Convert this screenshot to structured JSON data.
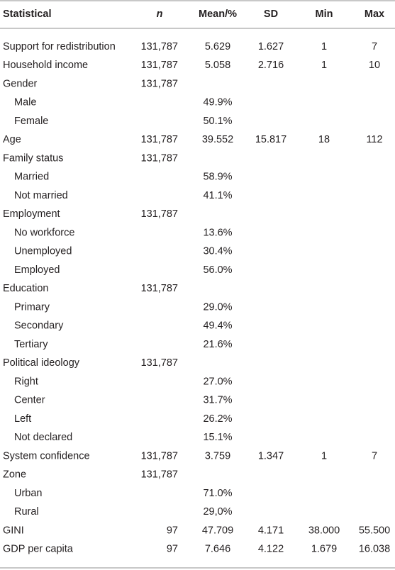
{
  "table": {
    "header": [
      "Statistical",
      "n",
      "Mean/%",
      "SD",
      "Min",
      "Max"
    ],
    "rows": [
      {
        "cells": [
          "Support for redistribution",
          "131,787",
          "5.629",
          "1.627",
          "1",
          "7"
        ]
      },
      {
        "cells": [
          "Household income",
          "131,787",
          "5.058",
          "2.716",
          "1",
          "10"
        ]
      },
      {
        "cells": [
          "Gender",
          "131,787",
          null,
          null,
          null,
          null
        ],
        "children": [
          {
            "cells": [
              "Male",
              null,
              "49.9%",
              null,
              null,
              null
            ]
          },
          {
            "cells": [
              "Female",
              null,
              "50.1%",
              null,
              null,
              null
            ]
          }
        ]
      },
      {
        "cells": [
          "Age",
          "131,787",
          "39.552",
          "15.817",
          "18",
          "112"
        ]
      },
      {
        "cells": [
          "Family status",
          "131,787",
          null,
          null,
          null,
          null
        ],
        "children": [
          {
            "cells": [
              "Married",
              null,
              "58.9%",
              null,
              null,
              null
            ]
          },
          {
            "cells": [
              "Not married",
              null,
              "41.1%",
              null,
              null,
              null
            ]
          }
        ]
      },
      {
        "cells": [
          "Employment",
          "131,787",
          null,
          null,
          null,
          null
        ],
        "children": [
          {
            "cells": [
              "No workforce",
              null,
              "13.6%",
              null,
              null,
              null
            ]
          },
          {
            "cells": [
              "Unemployed",
              null,
              "30.4%",
              null,
              null,
              null
            ]
          },
          {
            "cells": [
              "Employed",
              null,
              "56.0%",
              null,
              null,
              null
            ]
          }
        ]
      },
      {
        "cells": [
          "Education",
          "131,787",
          null,
          null,
          null,
          null
        ],
        "children": [
          {
            "cells": [
              "Primary",
              null,
              "29.0%",
              null,
              null,
              null
            ]
          },
          {
            "cells": [
              "Secondary",
              null,
              "49.4%",
              null,
              null,
              null
            ]
          },
          {
            "cells": [
              "Tertiary",
              null,
              "21.6%",
              null,
              null,
              null
            ]
          }
        ]
      },
      {
        "cells": [
          "Political ideology",
          "131,787",
          null,
          null,
          null,
          null
        ],
        "children": [
          {
            "cells": [
              "Right",
              null,
              "27.0%",
              null,
              null,
              null
            ]
          },
          {
            "cells": [
              "Center",
              null,
              "31.7%",
              null,
              null,
              null
            ]
          },
          {
            "cells": [
              "Left",
              null,
              "26.2%",
              null,
              null,
              null
            ]
          },
          {
            "cells": [
              "Not declared",
              null,
              "15.1%",
              null,
              null,
              null
            ]
          }
        ]
      },
      {
        "cells": [
          "System confidence",
          "131,787",
          "3.759",
          "1.347",
          "1",
          "7"
        ]
      },
      {
        "cells": [
          "Zone",
          "131,787",
          null,
          null,
          null,
          null
        ],
        "children": [
          {
            "cells": [
              "Urban",
              null,
              "71.0%",
              null,
              null,
              null
            ]
          },
          {
            "cells": [
              "Rural",
              null,
              "29,0%",
              null,
              null,
              null
            ]
          }
        ]
      },
      {
        "cells": [
          "GINI",
          "97",
          "47.709",
          "4.171",
          "38.000",
          "55.500"
        ]
      },
      {
        "cells": [
          "GDP per capita",
          "97",
          "7.646",
          "4.122",
          "1.679",
          "16.038"
        ]
      }
    ]
  }
}
